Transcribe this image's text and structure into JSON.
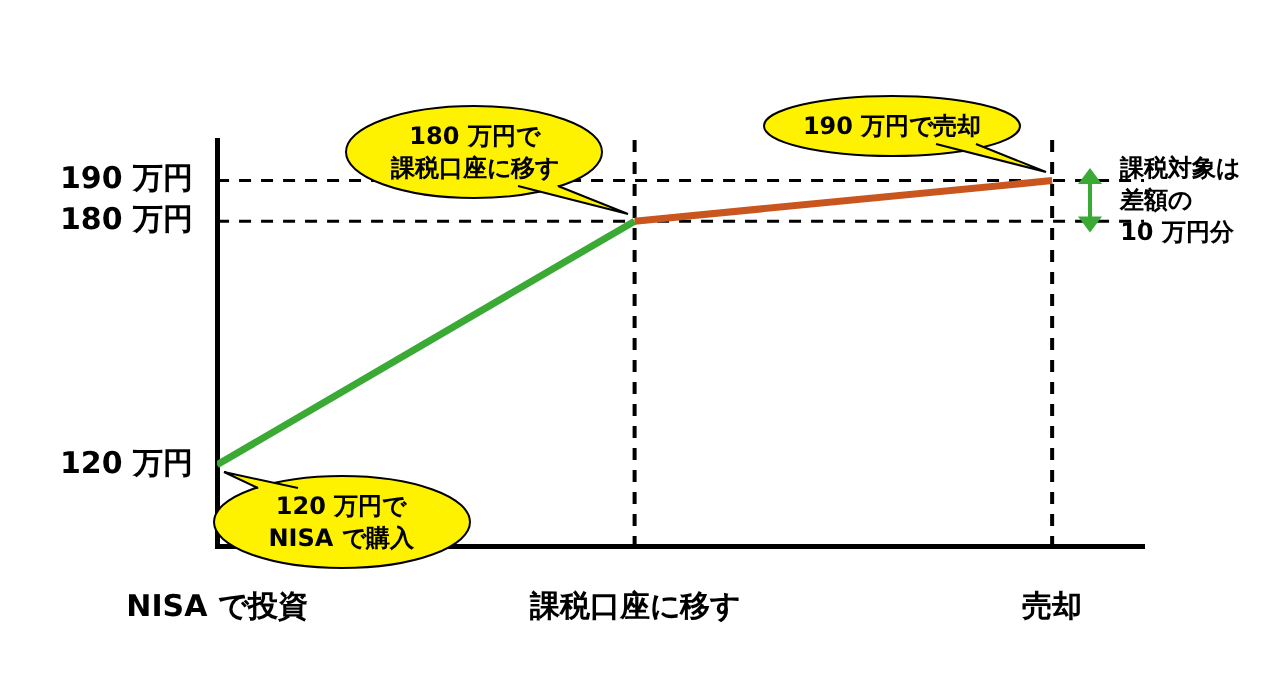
{
  "chart_data": {
    "type": "line",
    "categories": [
      "NISA で投資",
      "課税口座に移す",
      "売却"
    ],
    "series": [
      {
        "color": "#3aaa35",
        "values": [
          120,
          180,
          null
        ]
      },
      {
        "color": "#c8561e",
        "values": [
          null,
          180,
          190
        ]
      }
    ],
    "ylim": [
      100,
      200
    ],
    "yticks": [
      {
        "value": 120,
        "label": "120 万円"
      },
      {
        "value": 180,
        "label": "180 万円"
      },
      {
        "value": 190,
        "label": "190 万円"
      }
    ],
    "grid": false,
    "legend": false,
    "marker": "none",
    "line_style": "solid",
    "ref_lines": [
      {
        "axis": "y",
        "value": 180,
        "color": "#000000",
        "line_style": "dashed"
      },
      {
        "axis": "y",
        "value": 190,
        "color": "#000000",
        "line_style": "dashed"
      },
      {
        "axis": "x",
        "value": "課税口座に移す",
        "color": "#000000",
        "line_style": "dashed"
      },
      {
        "axis": "x",
        "value": "売却",
        "color": "#000000",
        "line_style": "dashed"
      }
    ],
    "annotations": [
      {
        "text": "120 万円でNISA で購入",
        "x": "NISA で投資",
        "y": 120
      },
      {
        "text": "180 万円で課税口座に移す",
        "x": "課税口座に移す",
        "y": 180
      },
      {
        "text": "190 万円で売却",
        "x": "売却",
        "y": 190
      },
      "課税対象は差額の10 万円分"
    ]
  }
}
